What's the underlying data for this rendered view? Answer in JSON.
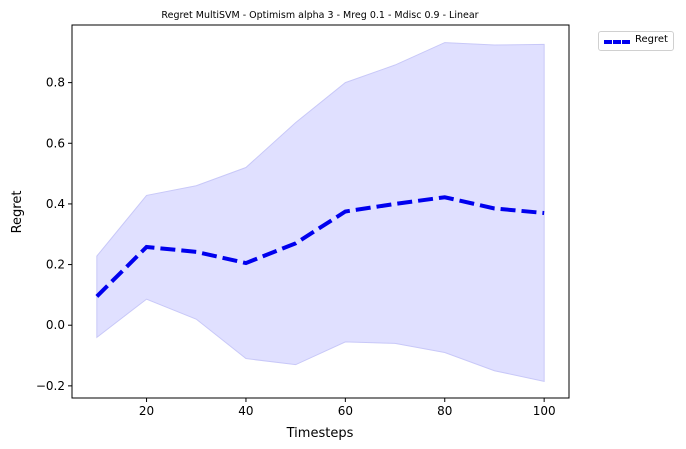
{
  "chart_data": {
    "type": "line",
    "title": "Regret MultiSVM - Optimism alpha 3 - Mreg 0.1 - Mdisc 0.9 - Linear",
    "xlabel": "Timesteps",
    "ylabel": "Regret",
    "x": [
      10,
      20,
      30,
      40,
      50,
      60,
      70,
      80,
      90,
      100
    ],
    "series": [
      {
        "name": "Regret",
        "color": "#0000ee",
        "line_style": "dashed",
        "values": [
          0.095,
          0.258,
          0.242,
          0.205,
          0.27,
          0.375,
          0.4,
          0.422,
          0.385,
          0.37
        ],
        "band_upper": [
          0.228,
          0.428,
          0.46,
          0.52,
          0.668,
          0.8,
          0.858,
          0.932,
          0.924,
          0.926
        ],
        "band_lower": [
          -0.04,
          0.086,
          0.02,
          -0.11,
          -0.13,
          -0.055,
          -0.06,
          -0.09,
          -0.15,
          -0.185
        ],
        "band_color": "#e0e0ff"
      }
    ],
    "xlim": [
      5,
      105
    ],
    "ylim": [
      -0.24,
      0.99
    ],
    "xticks": [
      20,
      40,
      60,
      80,
      100
    ],
    "yticks": [
      -0.2,
      0.0,
      0.2,
      0.4,
      0.6,
      0.8
    ],
    "ytick_labels": [
      "−0.2",
      "0.0",
      "0.2",
      "0.4",
      "0.6",
      "0.8"
    ],
    "xtick_labels": [
      "20",
      "40",
      "60",
      "80",
      "100"
    ],
    "grid": false,
    "legend_position": "outside-top-right"
  }
}
